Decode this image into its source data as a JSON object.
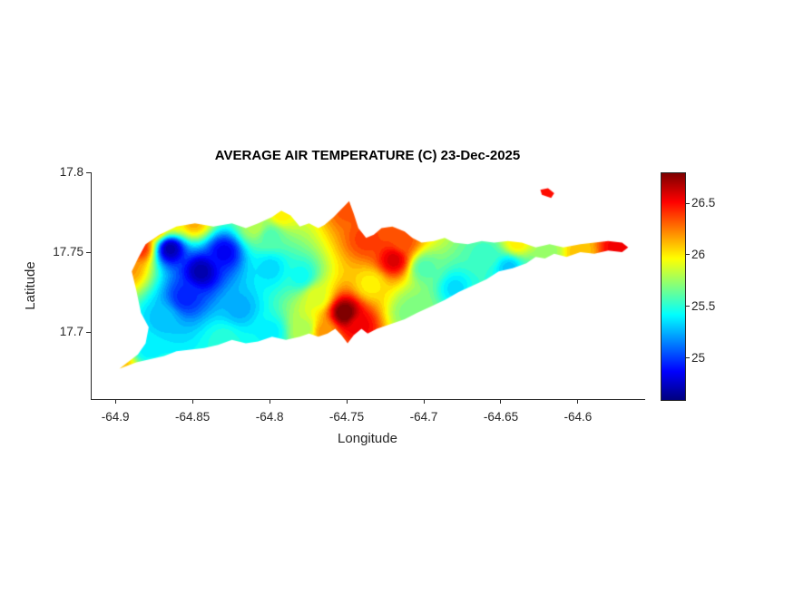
{
  "chart_data": {
    "type": "heatmap",
    "title": "AVERAGE AIR TEMPERATURE (C) 23-Dec-2025",
    "xlabel": "Longitude",
    "ylabel": "Latitude",
    "xlim": [
      -64.916,
      -64.557
    ],
    "ylim": [
      17.658,
      17.8
    ],
    "xticks": {
      "values": [
        -64.9,
        -64.85,
        -64.8,
        -64.75,
        -64.7,
        -64.65,
        -64.6
      ],
      "labels": [
        "-64.9",
        "-64.85",
        "-64.8",
        "-64.75",
        "-64.7",
        "-64.65",
        "-64.6"
      ]
    },
    "yticks": {
      "values": [
        17.7,
        17.75,
        17.8
      ],
      "labels": [
        "17.7",
        "17.75",
        "17.8"
      ]
    },
    "colormap": "jet",
    "clim": [
      24.6,
      26.8
    ],
    "colorbar_ticks": {
      "values": [
        25,
        25.5,
        26,
        26.5
      ],
      "labels": [
        "25",
        "25.5",
        "26",
        "26.5"
      ]
    },
    "grid": false,
    "legend": "colorbar-right",
    "island_outline": [
      [
        -64.898,
        17.677
      ],
      [
        -64.886,
        17.686
      ],
      [
        -64.881,
        17.693
      ],
      [
        -64.879,
        17.703
      ],
      [
        -64.884,
        17.712
      ],
      [
        -64.887,
        17.726
      ],
      [
        -64.89,
        17.738
      ],
      [
        -64.886,
        17.746
      ],
      [
        -64.881,
        17.755
      ],
      [
        -64.872,
        17.761
      ],
      [
        -64.861,
        17.766
      ],
      [
        -64.849,
        17.768
      ],
      [
        -64.837,
        17.766
      ],
      [
        -64.825,
        17.768
      ],
      [
        -64.816,
        17.765
      ],
      [
        -64.808,
        17.768
      ],
      [
        -64.799,
        17.772
      ],
      [
        -64.793,
        17.776
      ],
      [
        -64.787,
        17.773
      ],
      [
        -64.781,
        17.766
      ],
      [
        -64.775,
        17.768
      ],
      [
        -64.769,
        17.765
      ],
      [
        -64.765,
        17.767
      ],
      [
        -64.759,
        17.772
      ],
      [
        -64.753,
        17.778
      ],
      [
        -64.749,
        17.782
      ],
      [
        -64.746,
        17.774
      ],
      [
        -64.743,
        17.765
      ],
      [
        -64.738,
        17.759
      ],
      [
        -64.733,
        17.761
      ],
      [
        -64.728,
        17.765
      ],
      [
        -64.721,
        17.766
      ],
      [
        -64.713,
        17.763
      ],
      [
        -64.708,
        17.759
      ],
      [
        -64.702,
        17.756
      ],
      [
        -64.694,
        17.757
      ],
      [
        -64.687,
        17.759
      ],
      [
        -64.681,
        17.756
      ],
      [
        -64.672,
        17.755
      ],
      [
        -64.663,
        17.757
      ],
      [
        -64.655,
        17.756
      ],
      [
        -64.646,
        17.757
      ],
      [
        -64.637,
        17.756
      ],
      [
        -64.628,
        17.753
      ],
      [
        -64.619,
        17.755
      ],
      [
        -64.61,
        17.753
      ],
      [
        -64.599,
        17.755
      ],
      [
        -64.59,
        17.756
      ],
      [
        -64.581,
        17.757
      ],
      [
        -64.572,
        17.756
      ],
      [
        -64.568,
        17.753
      ],
      [
        -64.572,
        17.75
      ],
      [
        -64.581,
        17.751
      ],
      [
        -64.59,
        17.749
      ],
      [
        -64.599,
        17.75
      ],
      [
        -64.608,
        17.747
      ],
      [
        -64.616,
        17.749
      ],
      [
        -64.622,
        17.746
      ],
      [
        -64.628,
        17.747
      ],
      [
        -64.634,
        17.743
      ],
      [
        -64.643,
        17.74
      ],
      [
        -64.652,
        17.738
      ],
      [
        -64.66,
        17.733
      ],
      [
        -64.669,
        17.729
      ],
      [
        -64.678,
        17.725
      ],
      [
        -64.687,
        17.72
      ],
      [
        -64.696,
        17.716
      ],
      [
        -64.705,
        17.712
      ],
      [
        -64.713,
        17.708
      ],
      [
        -64.722,
        17.705
      ],
      [
        -64.731,
        17.702
      ],
      [
        -64.737,
        17.699
      ],
      [
        -64.741,
        17.702
      ],
      [
        -64.746,
        17.698
      ],
      [
        -64.75,
        17.693
      ],
      [
        -64.754,
        17.698
      ],
      [
        -64.758,
        17.702
      ],
      [
        -64.763,
        17.699
      ],
      [
        -64.769,
        17.697
      ],
      [
        -64.775,
        17.699
      ],
      [
        -64.781,
        17.697
      ],
      [
        -64.79,
        17.695
      ],
      [
        -64.799,
        17.697
      ],
      [
        -64.808,
        17.694
      ],
      [
        -64.816,
        17.693
      ],
      [
        -64.825,
        17.695
      ],
      [
        -64.834,
        17.692
      ],
      [
        -64.843,
        17.69
      ],
      [
        -64.852,
        17.689
      ],
      [
        -64.861,
        17.688
      ],
      [
        -64.869,
        17.685
      ],
      [
        -64.878,
        17.683
      ],
      [
        -64.887,
        17.681
      ]
    ],
    "islets": [
      [
        [
          -64.625,
          17.789
        ],
        [
          -64.62,
          17.79
        ],
        [
          -64.616,
          17.787
        ],
        [
          -64.618,
          17.784
        ],
        [
          -64.624,
          17.786
        ]
      ]
    ],
    "samples": [
      [
        -64.865,
        17.752,
        24.7
      ],
      [
        -64.845,
        17.738,
        24.7
      ],
      [
        -64.83,
        17.75,
        24.85
      ],
      [
        -64.855,
        17.722,
        24.95
      ],
      [
        -64.82,
        17.715,
        25.25
      ],
      [
        -64.8,
        17.74,
        25.35
      ],
      [
        -64.87,
        17.708,
        25.3
      ],
      [
        -64.78,
        17.735,
        25.45
      ],
      [
        -64.8,
        17.76,
        25.6
      ],
      [
        -64.885,
        17.753,
        26.45
      ],
      [
        -64.875,
        17.766,
        26.3
      ],
      [
        -64.85,
        17.769,
        26.15
      ],
      [
        -64.862,
        17.77,
        26.0
      ],
      [
        -64.893,
        17.74,
        26.2
      ],
      [
        -64.88,
        17.69,
        25.4
      ],
      [
        -64.897,
        17.679,
        26.1
      ],
      [
        -64.83,
        17.695,
        25.5
      ],
      [
        -64.8,
        17.7,
        25.4
      ],
      [
        -64.778,
        17.702,
        25.8
      ],
      [
        -64.81,
        17.766,
        25.8
      ],
      [
        -64.75,
        17.778,
        26.35
      ],
      [
        -64.793,
        17.774,
        26.0
      ],
      [
        -64.752,
        17.712,
        26.85
      ],
      [
        -64.742,
        17.704,
        26.55
      ],
      [
        -64.765,
        17.7,
        26.2
      ],
      [
        -64.77,
        17.722,
        25.9
      ],
      [
        -64.735,
        17.73,
        26.0
      ],
      [
        -64.72,
        17.745,
        26.6
      ],
      [
        -64.714,
        17.757,
        26.35
      ],
      [
        -64.738,
        17.758,
        26.4
      ],
      [
        -64.7,
        17.74,
        25.6
      ],
      [
        -64.68,
        17.727,
        25.35
      ],
      [
        -64.66,
        17.748,
        25.55
      ],
      [
        -64.645,
        17.74,
        25.3
      ],
      [
        -64.64,
        17.756,
        26.0
      ],
      [
        -64.62,
        17.75,
        25.75
      ],
      [
        -64.6,
        17.75,
        26.1
      ],
      [
        -64.575,
        17.752,
        26.55
      ],
      [
        -64.67,
        17.716,
        25.6
      ],
      [
        -64.63,
        17.736,
        25.6
      ],
      [
        -64.71,
        17.712,
        25.7
      ],
      [
        -64.705,
        17.715,
        25.7
      ],
      [
        -64.622,
        17.787,
        26.5
      ]
    ]
  },
  "colors": {
    "axis": "#262626",
    "tick_text": "#262626",
    "title_text": "#000000",
    "background": "#ffffff"
  }
}
